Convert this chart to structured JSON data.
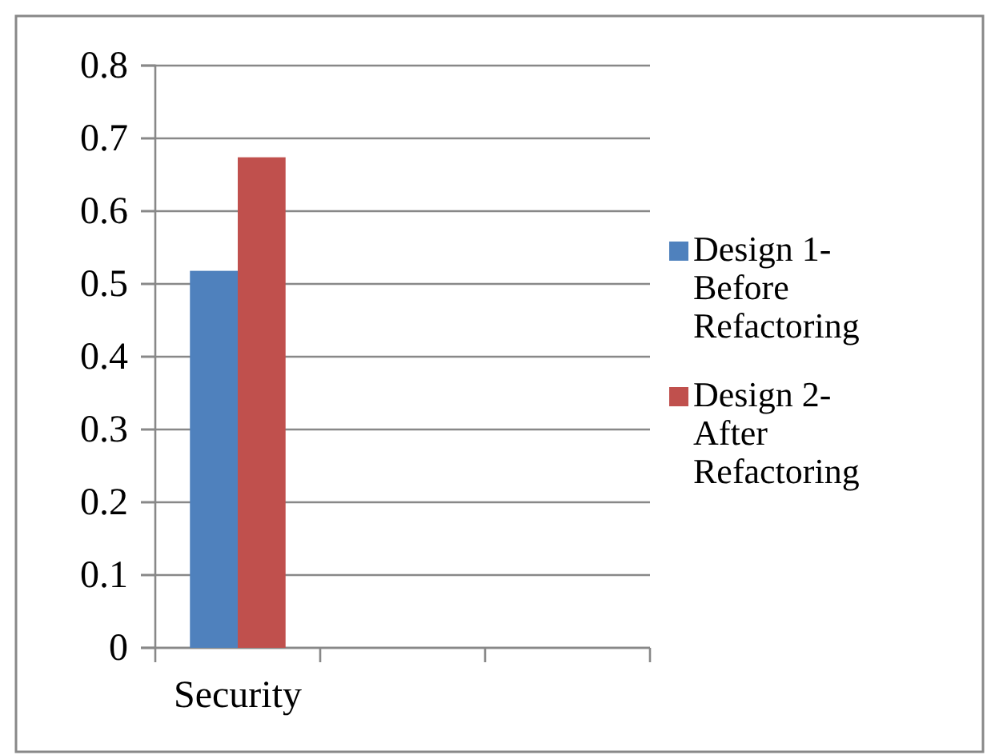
{
  "chart_data": {
    "type": "bar",
    "categories": [
      "Security",
      null,
      null
    ],
    "series": [
      {
        "name": "Design 1-Before Refactoring",
        "color": "#4f81bd",
        "values": [
          0.518,
          null,
          null
        ]
      },
      {
        "name": "Design 2-After Refactoring",
        "color": "#c0504d",
        "values": [
          0.674,
          null,
          null
        ]
      }
    ],
    "ylim": [
      0,
      0.8
    ],
    "yticks": [
      0,
      0.1,
      0.2,
      0.3,
      0.4,
      0.5,
      0.6,
      0.7,
      0.8
    ],
    "grid": "y",
    "legend": "right"
  }
}
